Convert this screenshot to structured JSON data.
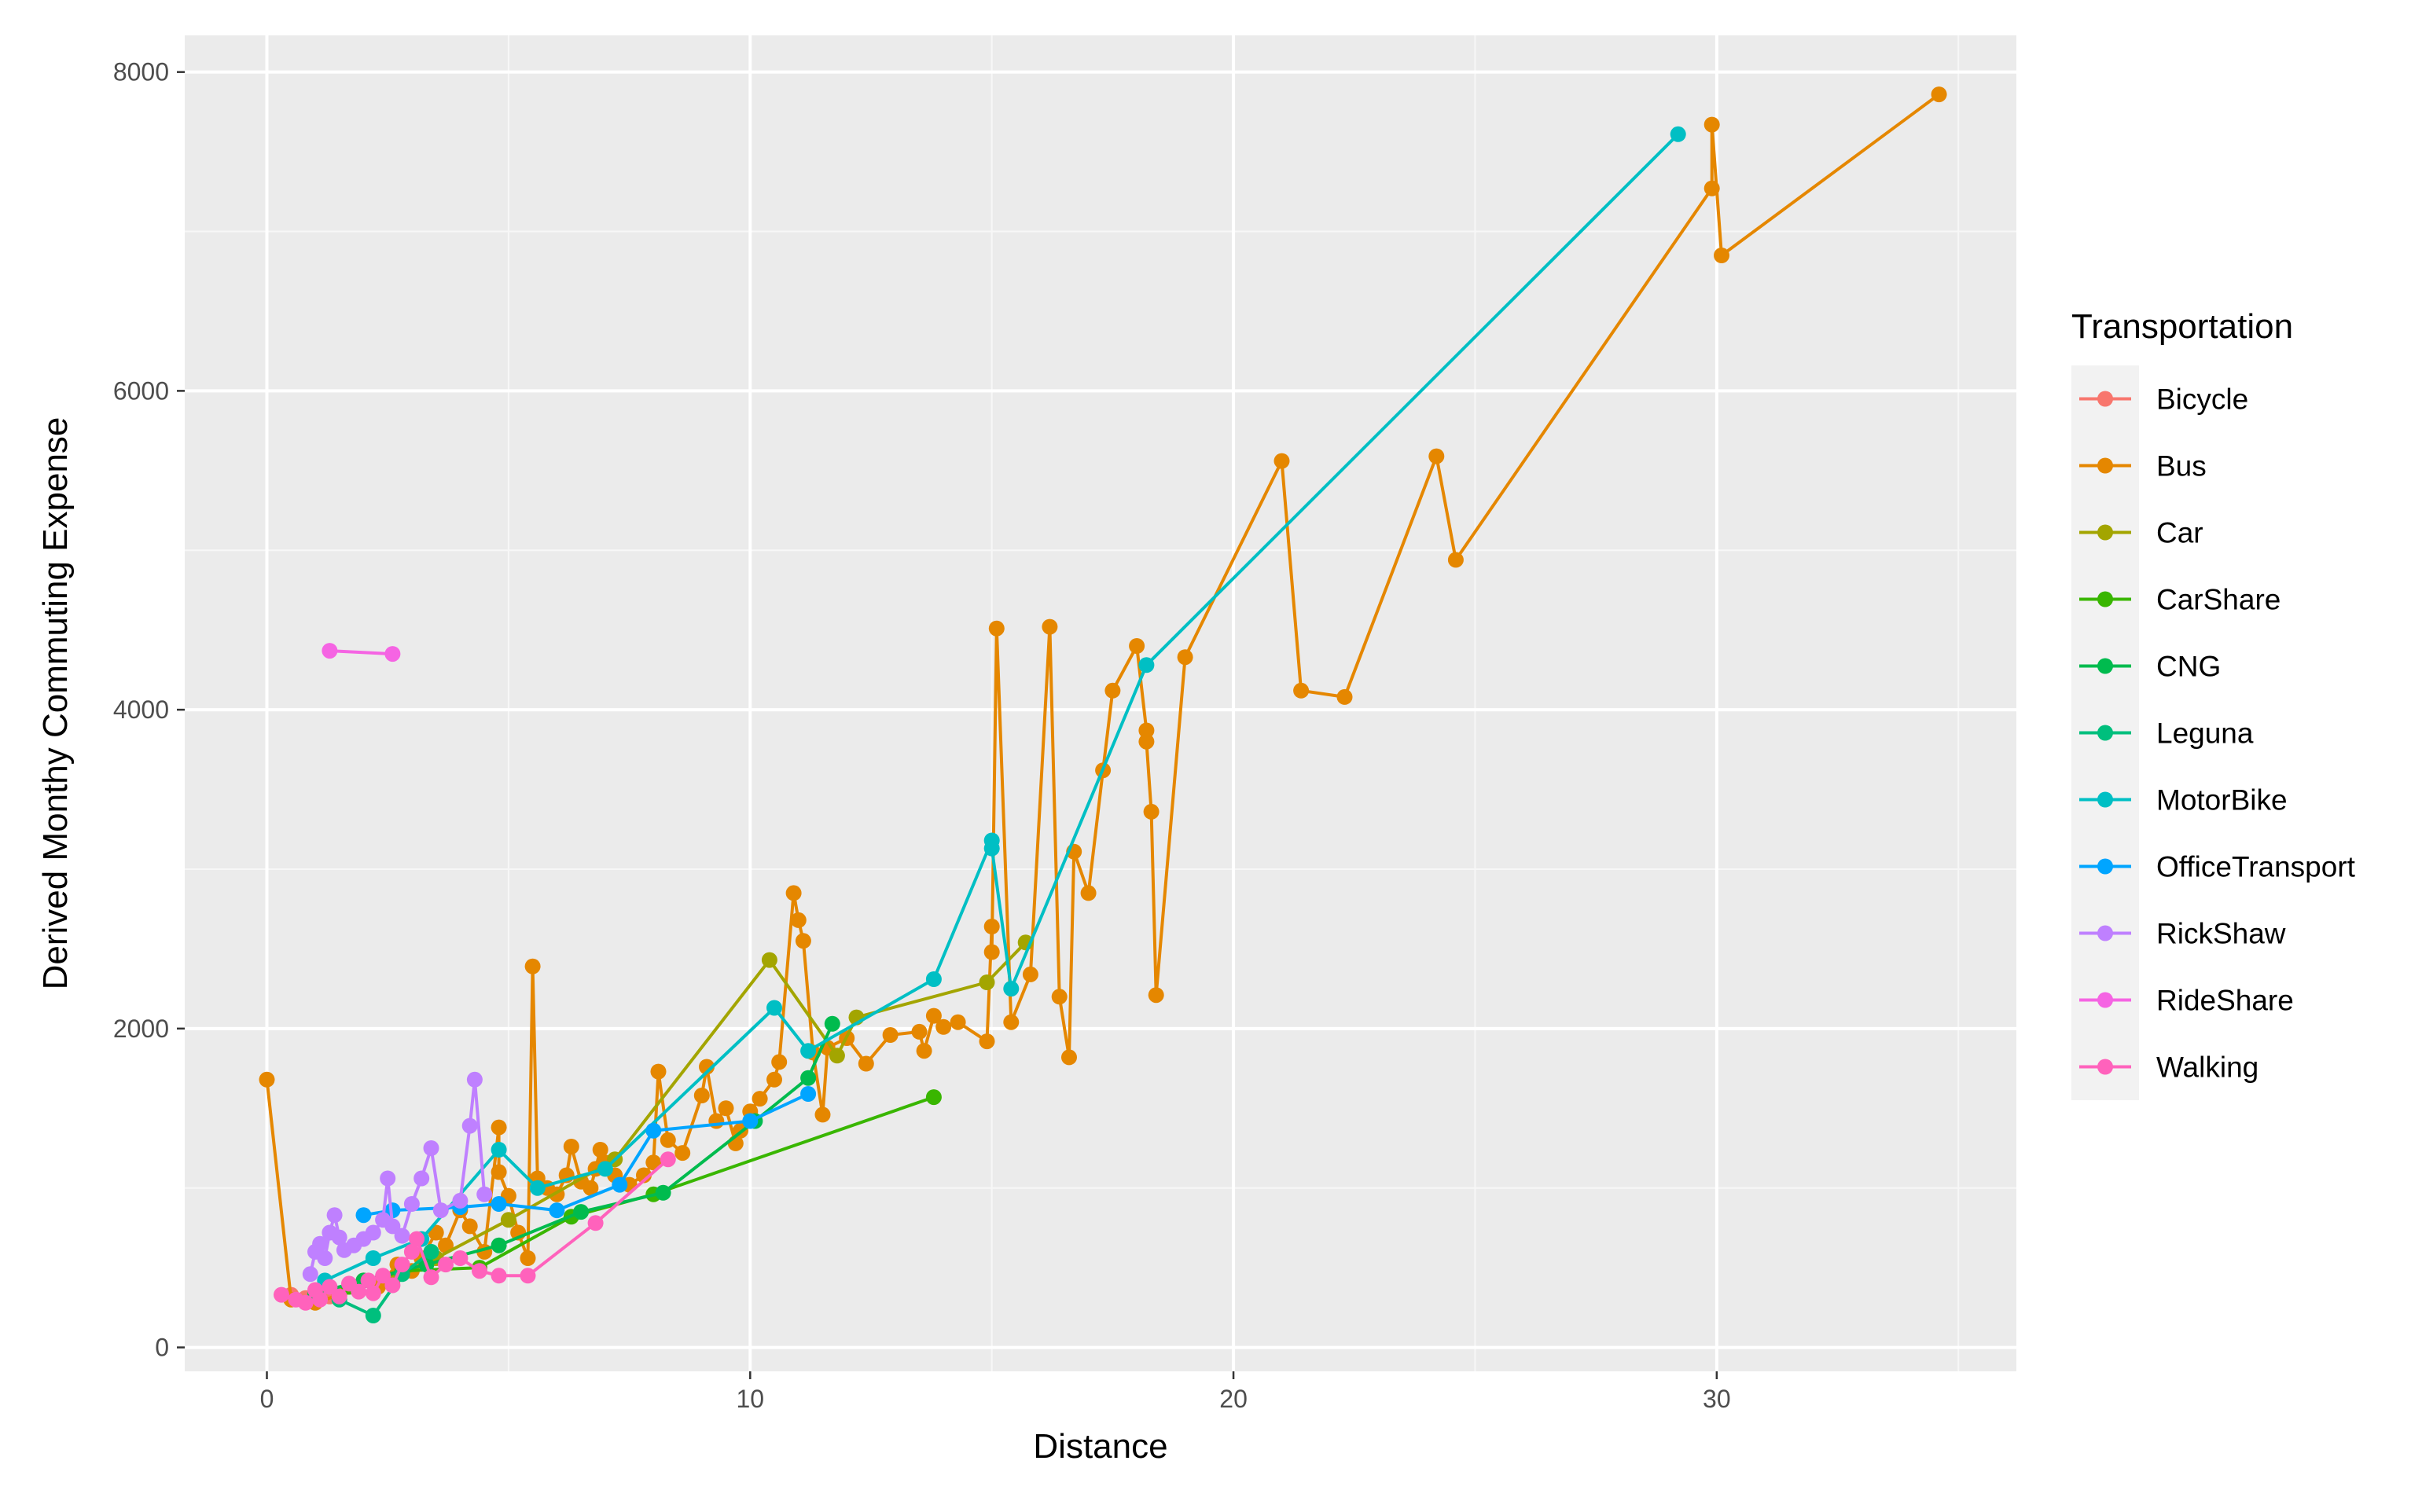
{
  "chart_data": {
    "type": "line",
    "title": "",
    "xlabel": "Distance",
    "ylabel": "Derived Monthy Commuting Expense",
    "xlim": [
      -1.7,
      36.2
    ],
    "ylim": [
      -150,
      8230
    ],
    "xticks": [
      0,
      10,
      20,
      30
    ],
    "yticks": [
      0,
      2000,
      4000,
      6000,
      8000
    ],
    "grid": true,
    "legend": {
      "title": "Transportation",
      "placement": "right"
    },
    "series": [
      {
        "name": "Bicycle",
        "color": "#F8766D",
        "points": [
          [
            0.5,
            330
          ],
          [
            0.8,
            310
          ],
          [
            1.0,
            350
          ],
          [
            1.3,
            320
          ]
        ]
      },
      {
        "name": "Bus",
        "color": "#E58700",
        "points": [
          [
            0.0,
            1680
          ],
          [
            0.5,
            300
          ],
          [
            1.0,
            280
          ],
          [
            1.5,
            330
          ],
          [
            2.0,
            420
          ],
          [
            2.3,
            380
          ],
          [
            2.7,
            520
          ],
          [
            3.0,
            480
          ],
          [
            3.2,
            560
          ],
          [
            3.5,
            720
          ],
          [
            3.7,
            640
          ],
          [
            4.0,
            860
          ],
          [
            4.2,
            760
          ],
          [
            4.5,
            600
          ],
          [
            4.8,
            1380
          ],
          [
            4.8,
            1100
          ],
          [
            5.0,
            950
          ],
          [
            5.2,
            720
          ],
          [
            5.4,
            560
          ],
          [
            5.5,
            2390
          ],
          [
            5.6,
            1060
          ],
          [
            5.8,
            1000
          ],
          [
            6.0,
            960
          ],
          [
            6.2,
            1080
          ],
          [
            6.3,
            1260
          ],
          [
            6.5,
            1040
          ],
          [
            6.7,
            1000
          ],
          [
            6.8,
            1120
          ],
          [
            6.9,
            1240
          ],
          [
            7.0,
            1160
          ],
          [
            7.2,
            1080
          ],
          [
            7.5,
            1020
          ],
          [
            7.8,
            1080
          ],
          [
            8.0,
            1160
          ],
          [
            8.1,
            1730
          ],
          [
            8.3,
            1300
          ],
          [
            8.6,
            1220
          ],
          [
            9.0,
            1580
          ],
          [
            9.1,
            1760
          ],
          [
            9.3,
            1420
          ],
          [
            9.5,
            1500
          ],
          [
            9.7,
            1280
          ],
          [
            9.8,
            1360
          ],
          [
            10.0,
            1480
          ],
          [
            10.2,
            1560
          ],
          [
            10.5,
            1680
          ],
          [
            10.6,
            1790
          ],
          [
            10.9,
            2850
          ],
          [
            11.0,
            2680
          ],
          [
            11.1,
            2550
          ],
          [
            11.3,
            1850
          ],
          [
            11.5,
            1460
          ],
          [
            11.6,
            1880
          ],
          [
            12.0,
            1940
          ],
          [
            12.4,
            1780
          ],
          [
            12.9,
            1960
          ],
          [
            13.5,
            1980
          ],
          [
            13.6,
            1860
          ],
          [
            13.8,
            2080
          ],
          [
            14.0,
            2010
          ],
          [
            14.3,
            2040
          ],
          [
            14.9,
            1920
          ],
          [
            15.0,
            2640
          ],
          [
            15.0,
            2480
          ],
          [
            15.1,
            4510
          ],
          [
            15.4,
            2040
          ],
          [
            15.8,
            2340
          ],
          [
            16.2,
            4520
          ],
          [
            16.4,
            2200
          ],
          [
            16.6,
            1820
          ],
          [
            16.7,
            3110
          ],
          [
            17.0,
            2850
          ],
          [
            17.3,
            3620
          ],
          [
            17.5,
            4120
          ],
          [
            18.0,
            4400
          ],
          [
            18.2,
            3870
          ],
          [
            18.2,
            3800
          ],
          [
            18.3,
            3360
          ],
          [
            18.4,
            2210
          ],
          [
            19.0,
            4330
          ],
          [
            21.0,
            5560
          ],
          [
            21.4,
            4120
          ],
          [
            22.3,
            4080
          ],
          [
            24.2,
            5590
          ],
          [
            24.6,
            4940
          ],
          [
            29.9,
            7270
          ],
          [
            29.9,
            7670
          ],
          [
            30.1,
            6850
          ],
          [
            34.6,
            7860
          ]
        ]
      },
      {
        "name": "Car",
        "color": "#A3A500",
        "points": [
          [
            2.6,
            420
          ],
          [
            3.5,
            560
          ],
          [
            5.0,
            800
          ],
          [
            7.2,
            1180
          ],
          [
            10.4,
            2430
          ],
          [
            11.8,
            1830
          ],
          [
            12.2,
            2070
          ],
          [
            14.9,
            2290
          ],
          [
            15.7,
            2540
          ]
        ]
      },
      {
        "name": "CarShare",
        "color": "#39B600",
        "points": [
          [
            1.7,
            380
          ],
          [
            2.8,
            480
          ],
          [
            4.4,
            500
          ],
          [
            6.3,
            820
          ],
          [
            8.0,
            960
          ],
          [
            13.8,
            1570
          ]
        ]
      },
      {
        "name": "CNG",
        "color": "#00BB4E",
        "points": [
          [
            1.0,
            340
          ],
          [
            2.0,
            420
          ],
          [
            3.3,
            520
          ],
          [
            4.8,
            640
          ],
          [
            6.5,
            850
          ],
          [
            8.2,
            970
          ],
          [
            10.1,
            1420
          ],
          [
            11.2,
            1690
          ],
          [
            11.7,
            2030
          ]
        ]
      },
      {
        "name": "Leguna",
        "color": "#00BF7D",
        "points": [
          [
            1.5,
            300
          ],
          [
            2.2,
            200
          ],
          [
            2.8,
            460
          ],
          [
            3.4,
            600
          ]
        ]
      },
      {
        "name": "MotorBike",
        "color": "#00BFC4",
        "points": [
          [
            1.2,
            420
          ],
          [
            2.2,
            560
          ],
          [
            3.2,
            680
          ],
          [
            4.8,
            1240
          ],
          [
            5.6,
            1000
          ],
          [
            7.0,
            1120
          ],
          [
            10.5,
            2130
          ],
          [
            11.2,
            1860
          ],
          [
            13.8,
            2310
          ],
          [
            15.0,
            3180
          ],
          [
            15.0,
            3130
          ],
          [
            15.4,
            2250
          ],
          [
            18.2,
            4280
          ],
          [
            29.2,
            7610
          ]
        ]
      },
      {
        "name": "OfficeTransport",
        "color": "#00A5FF",
        "points": [
          [
            2.0,
            830
          ],
          [
            2.6,
            860
          ],
          [
            4.0,
            880
          ],
          [
            4.8,
            900
          ],
          [
            6.0,
            860
          ],
          [
            7.3,
            1020
          ],
          [
            8.0,
            1360
          ],
          [
            10.0,
            1420
          ],
          [
            11.2,
            1590
          ]
        ]
      },
      {
        "name": "RickShaw",
        "color": "#BF80FF",
        "points": [
          [
            0.9,
            460
          ],
          [
            1.0,
            600
          ],
          [
            1.1,
            650
          ],
          [
            1.2,
            560
          ],
          [
            1.3,
            720
          ],
          [
            1.4,
            830
          ],
          [
            1.5,
            690
          ],
          [
            1.6,
            610
          ],
          [
            1.8,
            640
          ],
          [
            2.0,
            680
          ],
          [
            2.2,
            720
          ],
          [
            2.4,
            800
          ],
          [
            2.5,
            1060
          ],
          [
            2.6,
            760
          ],
          [
            2.8,
            700
          ],
          [
            3.0,
            900
          ],
          [
            3.2,
            1060
          ],
          [
            3.4,
            1250
          ],
          [
            3.6,
            860
          ],
          [
            4.0,
            920
          ],
          [
            4.2,
            1390
          ],
          [
            4.3,
            1680
          ],
          [
            4.5,
            960
          ]
        ]
      },
      {
        "name": "RideShare",
        "color": "#F564E3",
        "points": [
          [
            1.3,
            4370
          ],
          [
            2.6,
            4350
          ]
        ]
      },
      {
        "name": "Walking",
        "color": "#FF62BC",
        "points": [
          [
            0.3,
            330
          ],
          [
            0.6,
            300
          ],
          [
            0.8,
            280
          ],
          [
            1.0,
            360
          ],
          [
            1.1,
            300
          ],
          [
            1.3,
            380
          ],
          [
            1.5,
            320
          ],
          [
            1.7,
            400
          ],
          [
            1.9,
            350
          ],
          [
            2.1,
            420
          ],
          [
            2.2,
            340
          ],
          [
            2.4,
            450
          ],
          [
            2.6,
            390
          ],
          [
            2.8,
            520
          ],
          [
            3.0,
            600
          ],
          [
            3.1,
            680
          ],
          [
            3.4,
            440
          ],
          [
            3.7,
            520
          ],
          [
            4.0,
            560
          ],
          [
            4.4,
            480
          ],
          [
            4.8,
            450
          ],
          [
            5.4,
            450
          ],
          [
            6.8,
            780
          ],
          [
            8.3,
            1180
          ]
        ]
      }
    ]
  }
}
